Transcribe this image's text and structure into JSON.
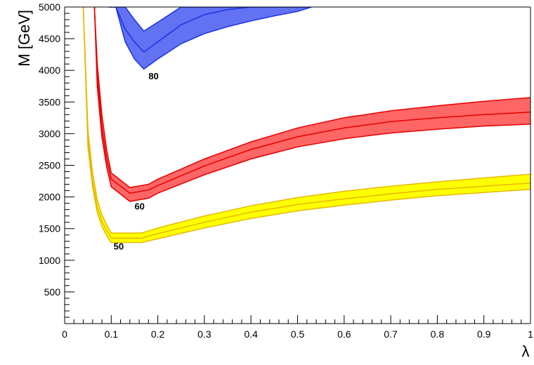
{
  "chart_data": {
    "type": "area",
    "xlabel": "λ",
    "ylabel": "M [GeV]",
    "xlim": [
      0,
      1
    ],
    "ylim": [
      0,
      5000
    ],
    "x_ticks": [
      "0",
      "0.1",
      "0.2",
      "0.3",
      "0.4",
      "0.5",
      "0.6",
      "0.7",
      "0.8",
      "0.9",
      "1"
    ],
    "y_ticks": [
      "500",
      "1000",
      "1500",
      "2000",
      "2500",
      "3000",
      "3500",
      "4000",
      "4500",
      "5000"
    ],
    "grid": false,
    "series": [
      {
        "name": "50",
        "color": "#ffff00",
        "edge_color": "#e6b800",
        "label_at": [
          0.105,
          1170
        ],
        "x": [
          0.04,
          0.05,
          0.06,
          0.07,
          0.08,
          0.09,
          0.1,
          0.165,
          0.2,
          0.3,
          0.4,
          0.5,
          0.6,
          0.7,
          0.8,
          0.9,
          1.0
        ],
        "central": [
          5000,
          2900,
          2250,
          1850,
          1620,
          1470,
          1350,
          1350,
          1420,
          1600,
          1760,
          1880,
          1970,
          2050,
          2120,
          2170,
          2220
        ],
        "upper": [
          5000,
          3050,
          2380,
          1960,
          1720,
          1560,
          1430,
          1430,
          1510,
          1700,
          1860,
          1990,
          2090,
          2170,
          2240,
          2300,
          2360
        ],
        "lower": [
          5000,
          2780,
          2150,
          1760,
          1540,
          1390,
          1280,
          1280,
          1340,
          1510,
          1660,
          1780,
          1870,
          1950,
          2020,
          2070,
          2120
        ]
      },
      {
        "name": "60",
        "color": "#ff6666",
        "edge_color": "#e60000",
        "label_at": [
          0.15,
          1800
        ],
        "x": [
          0.064,
          0.07,
          0.08,
          0.09,
          0.1,
          0.14,
          0.18,
          0.2,
          0.3,
          0.4,
          0.5,
          0.6,
          0.7,
          0.8,
          0.9,
          1.0
        ],
        "central": [
          5000,
          3900,
          3100,
          2600,
          2280,
          2060,
          2110,
          2180,
          2490,
          2750,
          2950,
          3090,
          3190,
          3250,
          3300,
          3340
        ],
        "upper": [
          5000,
          4100,
          3300,
          2750,
          2380,
          2150,
          2200,
          2280,
          2600,
          2870,
          3090,
          3250,
          3360,
          3440,
          3510,
          3570
        ],
        "lower": [
          5000,
          3750,
          2950,
          2480,
          2160,
          1930,
          1980,
          2060,
          2350,
          2600,
          2790,
          2920,
          3010,
          3070,
          3120,
          3150
        ]
      },
      {
        "name": "80",
        "color": "#6272f2",
        "edge_color": "#1a33e6",
        "label_at": [
          0.18,
          3860
        ],
        "x": [
          0.095,
          0.11,
          0.13,
          0.15,
          0.17,
          0.2,
          0.25,
          0.3,
          0.35,
          0.4,
          0.45,
          0.5,
          0.53
        ],
        "central": [
          5000,
          5000,
          4650,
          4450,
          4290,
          4450,
          4720,
          4880,
          4960,
          5000,
          5000,
          5000,
          5000
        ],
        "upper": [
          5000,
          5000,
          5000,
          4800,
          4620,
          4760,
          5000,
          5000,
          5000,
          5000,
          5000,
          5000,
          5000
        ],
        "lower": [
          5000,
          5000,
          4450,
          4180,
          4020,
          4180,
          4420,
          4580,
          4690,
          4780,
          4860,
          4930,
          5000
        ]
      }
    ]
  }
}
